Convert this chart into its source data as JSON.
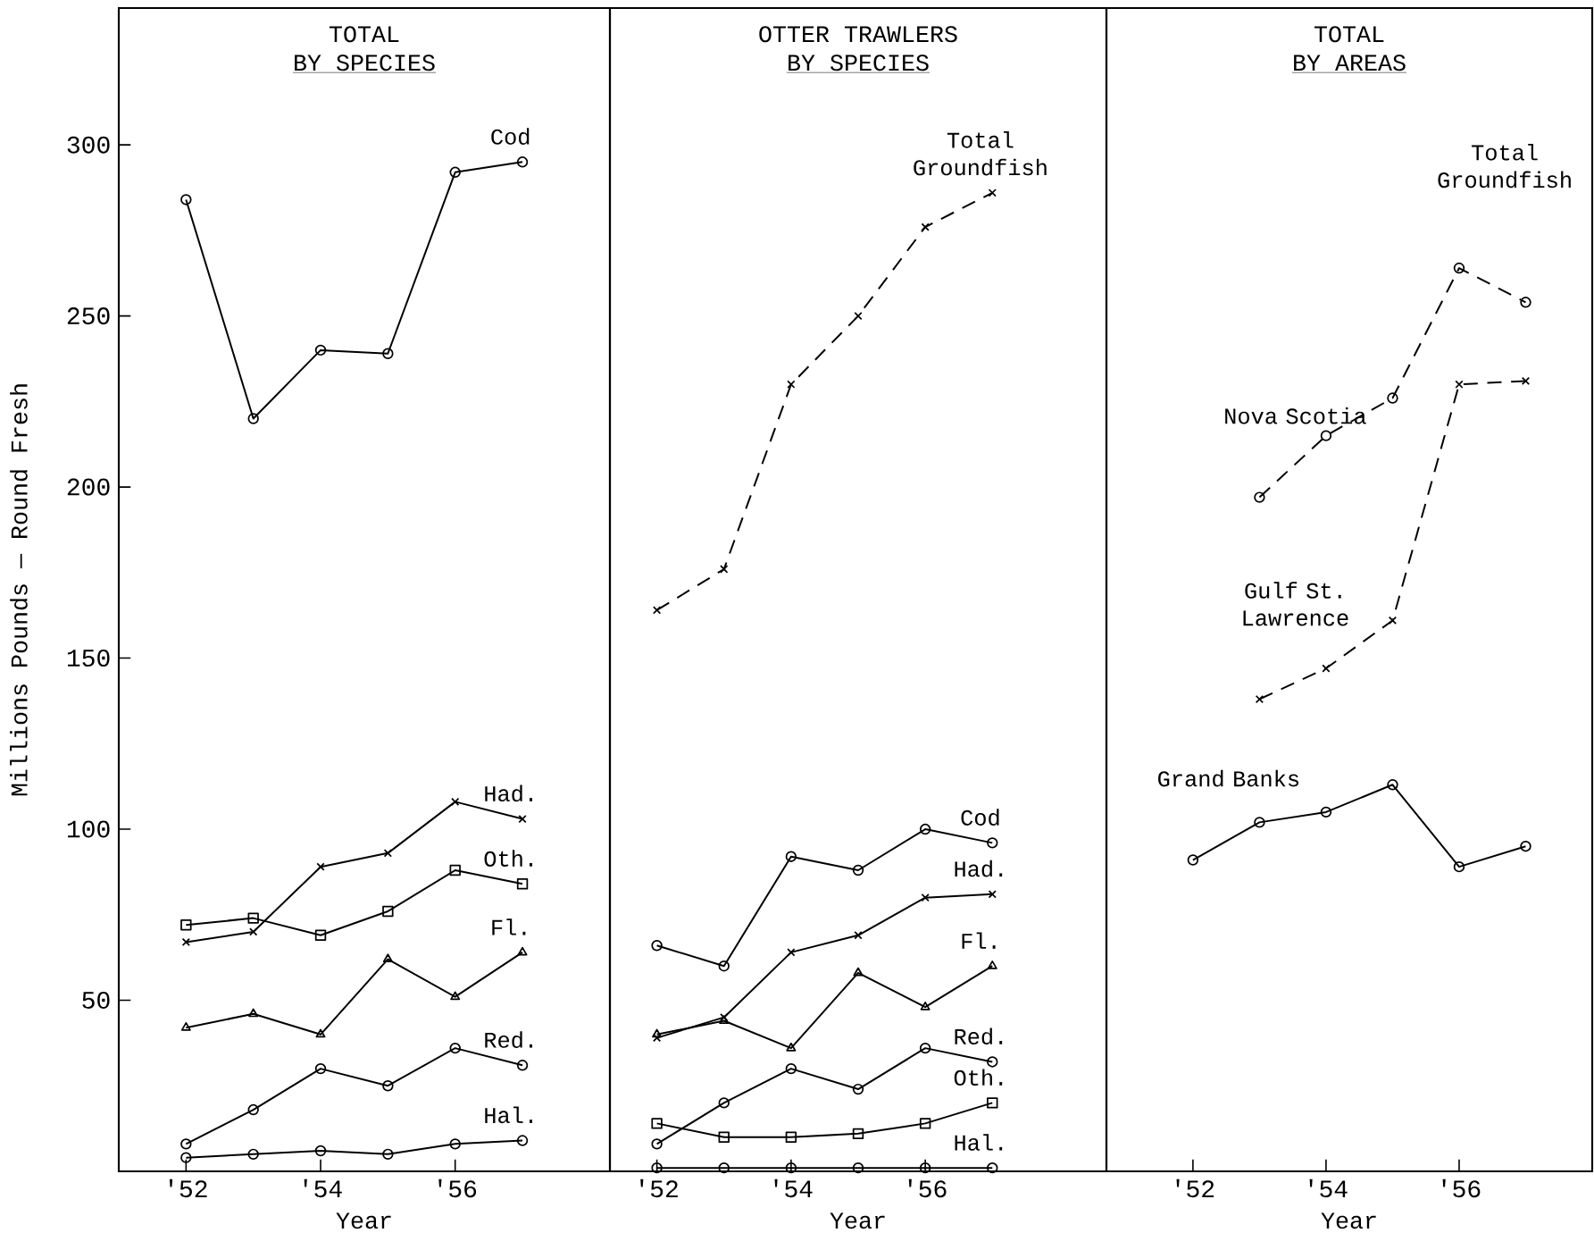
{
  "chart_data": [
    {
      "type": "line",
      "title": "TOTAL",
      "subtitle": "BY SPECIES",
      "xlabel": "Year",
      "ylabel": "Millions Pounds — Round Fresh",
      "x": [
        1952,
        1953,
        1954,
        1955,
        1956,
        1957
      ],
      "xlim": [
        1951,
        1958.3
      ],
      "ylim": [
        0,
        340
      ],
      "xticks": [
        {
          "value": 1952,
          "label": "'52"
        },
        {
          "value": 1954,
          "label": "'54"
        },
        {
          "value": 1956,
          "label": "'56"
        }
      ],
      "yticks": [
        50,
        100,
        150,
        200,
        250,
        300
      ],
      "series": [
        {
          "name": "Cod",
          "color": "#000000",
          "marker": "circle",
          "line_style": "solid",
          "values": [
            284,
            220,
            240,
            239,
            292,
            295
          ]
        },
        {
          "name": "Had.",
          "color": "#000000",
          "marker": "cross",
          "line_style": "solid",
          "values": [
            67,
            70,
            89,
            93,
            108,
            103
          ]
        },
        {
          "name": "Oth.",
          "color": "#000000",
          "marker": "square",
          "line_style": "solid",
          "values": [
            72,
            74,
            69,
            76,
            88,
            84
          ]
        },
        {
          "name": "Fl.",
          "color": "#000000",
          "marker": "triangle",
          "line_style": "solid",
          "values": [
            42,
            46,
            40,
            62,
            51,
            64
          ]
        },
        {
          "name": "Red.",
          "color": "#000000",
          "marker": "circle",
          "line_style": "solid",
          "values": [
            8,
            18,
            30,
            25,
            36,
            31
          ]
        },
        {
          "name": "Hal.",
          "color": "#000000",
          "marker": "circle",
          "line_style": "solid",
          "values": [
            4,
            5,
            6,
            5,
            8,
            9
          ]
        }
      ]
    },
    {
      "type": "line",
      "title": "OTTER TRAWLERS",
      "subtitle": "BY SPECIES",
      "xlabel": "Year",
      "x": [
        1952,
        1953,
        1954,
        1955,
        1956,
        1957
      ],
      "xlim": [
        1951.3,
        1958.7
      ],
      "ylim": [
        0,
        340
      ],
      "tick_labels": "x",
      "xticks": [
        {
          "value": 1952,
          "label": "'52"
        },
        {
          "value": 1954,
          "label": "'54"
        },
        {
          "value": 1956,
          "label": "'56"
        }
      ],
      "series": [
        {
          "name": "Total Groundfish",
          "color": "#000000",
          "marker": "cross",
          "line_style": "dashed",
          "values": [
            164,
            176,
            230,
            250,
            276,
            286
          ]
        },
        {
          "name": "Cod",
          "color": "#000000",
          "marker": "circle",
          "line_style": "solid",
          "values": [
            66,
            60,
            92,
            88,
            100,
            96
          ]
        },
        {
          "name": "Had.",
          "color": "#000000",
          "marker": "cross",
          "line_style": "solid",
          "values": [
            39,
            45,
            64,
            69,
            80,
            81
          ]
        },
        {
          "name": "Fl.",
          "color": "#000000",
          "marker": "triangle",
          "line_style": "solid",
          "values": [
            40,
            44,
            36,
            58,
            48,
            60
          ]
        },
        {
          "name": "Red.",
          "color": "#000000",
          "marker": "circle",
          "line_style": "solid",
          "values": [
            8,
            20,
            30,
            24,
            36,
            32
          ]
        },
        {
          "name": "Oth.",
          "color": "#000000",
          "marker": "square",
          "line_style": "solid",
          "values": [
            14,
            10,
            10,
            11,
            14,
            20
          ]
        },
        {
          "name": "Hal.",
          "color": "#000000",
          "marker": "circle",
          "line_style": "solid",
          "values": [
            1,
            1,
            1,
            1,
            1,
            1
          ]
        }
      ]
    },
    {
      "type": "line",
      "title": "TOTAL",
      "subtitle": "BY AREAS",
      "xlabel": "Year",
      "annotations": [
        "Total Groundfish"
      ],
      "x": [
        1952,
        1953,
        1954,
        1955,
        1956,
        1957
      ],
      "xlim": [
        1950.7,
        1958
      ],
      "ylim": [
        0,
        340
      ],
      "tick_labels": "x",
      "xticks": [
        {
          "value": 1952,
          "label": "'52"
        },
        {
          "value": 1954,
          "label": "'54"
        },
        {
          "value": 1956,
          "label": "'56"
        }
      ],
      "series": [
        {
          "name": "Nova Scotia",
          "color": "#000000",
          "marker": "circle",
          "line_style": "dashed",
          "values": [
            null,
            197,
            215,
            226,
            264,
            254
          ]
        },
        {
          "name": "Gulf St. Lawrence",
          "color": "#000000",
          "marker": "cross",
          "line_style": "dashed",
          "values": [
            null,
            138,
            147,
            161,
            230,
            231
          ]
        },
        {
          "name": "Grand Banks",
          "color": "#000000",
          "marker": "circle",
          "line_style": "solid",
          "values": [
            91,
            102,
            105,
            113,
            89,
            95
          ]
        }
      ]
    }
  ]
}
